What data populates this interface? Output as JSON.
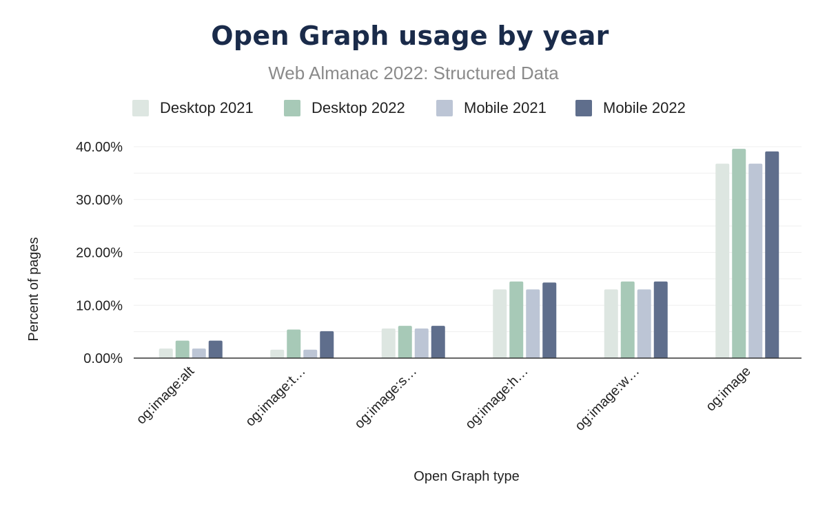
{
  "chart_data": {
    "type": "bar",
    "title": "Open Graph usage by year",
    "subtitle": "Web Almanac 2022: Structured Data",
    "xlabel": "Open Graph type",
    "ylabel": "Percent of pages",
    "categories": [
      "og:image:alt",
      "og:image:t…",
      "og:image:s…",
      "og:image:h…",
      "og:image:w…",
      "og:image"
    ],
    "ylim": [
      0,
      43
    ],
    "yticks": [
      0,
      10,
      20,
      30,
      40
    ],
    "ytick_labels": [
      "0.00%",
      "10.00%",
      "20.00%",
      "30.00%",
      "40.00%"
    ],
    "grid": true,
    "legend_position": "top",
    "series": [
      {
        "name": "Desktop 2021",
        "color": "#dde6e1",
        "values": [
          1.8,
          1.6,
          5.6,
          13.0,
          13.0,
          36.8
        ]
      },
      {
        "name": "Desktop 2022",
        "color": "#a7c9b7",
        "values": [
          3.3,
          5.4,
          6.1,
          14.5,
          14.5,
          39.6
        ]
      },
      {
        "name": "Mobile 2021",
        "color": "#bcc5d5",
        "values": [
          1.8,
          1.6,
          5.6,
          13.0,
          13.0,
          36.8
        ]
      },
      {
        "name": "Mobile 2022",
        "color": "#5f6e8c",
        "values": [
          3.3,
          5.1,
          6.1,
          14.3,
          14.5,
          39.1
        ]
      }
    ]
  }
}
